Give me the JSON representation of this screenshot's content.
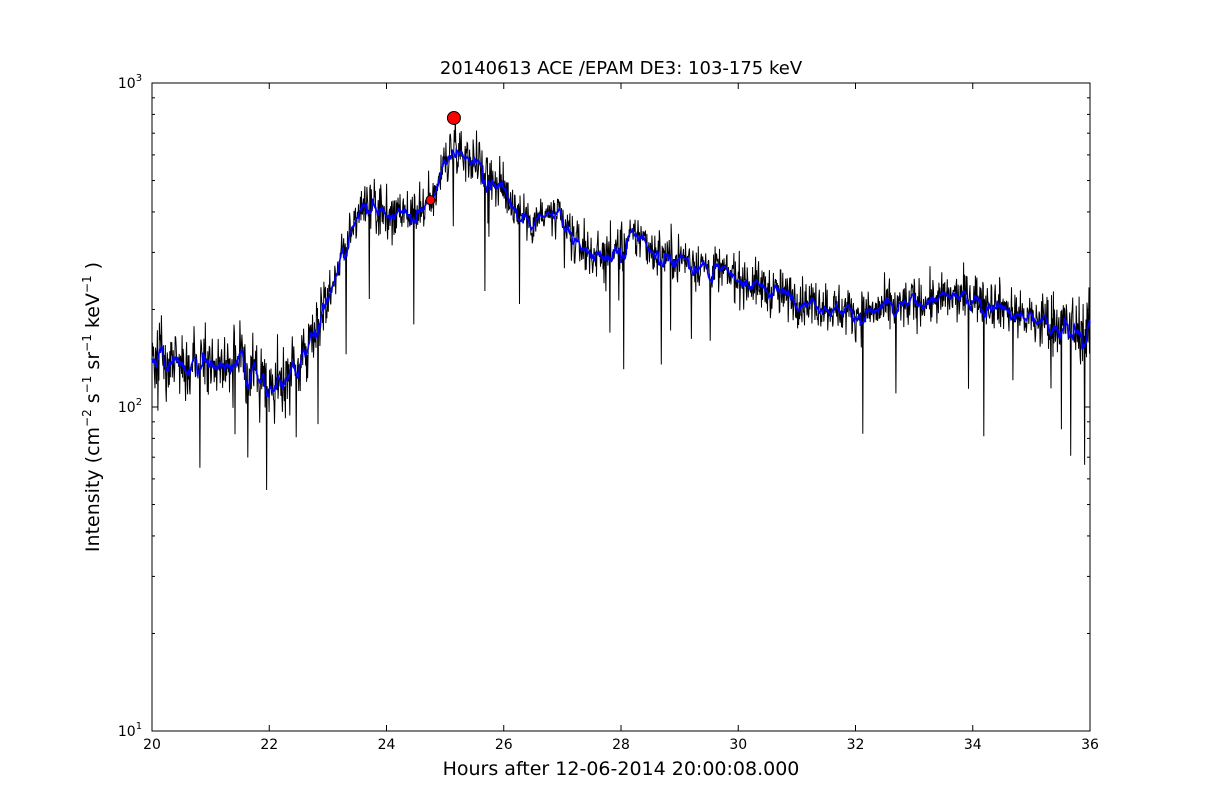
{
  "chart_data": {
    "type": "line",
    "title": "20140613 ACE /EPAM DE3: 103-175 keV",
    "xlabel": "Hours after 12-06-2014 20:00:08.000",
    "ylabel_parts": {
      "prefix": "Intensity (cm",
      "sup1": "−2",
      "mid1": " s",
      "sup2": "−1",
      "mid2": " sr",
      "sup3": "−1",
      "mid3": " keV",
      "sup4": "−1",
      "suffix": " )"
    },
    "xlim": [
      20,
      36
    ],
    "ylim": [
      10,
      1000
    ],
    "yscale": "log",
    "grid": false,
    "x_ticks": [
      "20",
      "22",
      "24",
      "26",
      "28",
      "30",
      "32",
      "34",
      "36"
    ],
    "y_ticks": [
      {
        "base": "10",
        "exp": "1"
      },
      {
        "base": "10",
        "exp": "2"
      },
      {
        "base": "10",
        "exp": "3"
      }
    ],
    "series_colors": {
      "raw": "#000000",
      "smoothed": "#0000ff",
      "markers": "#ff0000"
    },
    "profile_x": [
      20.0,
      20.5,
      21.0,
      21.5,
      21.8,
      22.0,
      22.3,
      22.6,
      22.9,
      23.2,
      23.5,
      23.75,
      24.0,
      24.3,
      24.6,
      24.8,
      25.0,
      25.15,
      25.4,
      25.7,
      26.0,
      26.4,
      26.8,
      27.0,
      27.3,
      27.7,
      28.0,
      28.3,
      28.6,
      29.0,
      29.5,
      30.0,
      30.5,
      31.0,
      31.5,
      32.0,
      32.5,
      33.0,
      33.5,
      34.0,
      34.5,
      35.0,
      35.5,
      36.0
    ],
    "profile_y": [
      155,
      140,
      140,
      135,
      125,
      110,
      120,
      150,
      200,
      280,
      390,
      430,
      390,
      380,
      400,
      450,
      560,
      650,
      600,
      540,
      460,
      380,
      390,
      370,
      310,
      290,
      310,
      340,
      300,
      290,
      270,
      250,
      230,
      215,
      205,
      195,
      200,
      210,
      215,
      220,
      205,
      185,
      180,
      170
    ],
    "markers": [
      {
        "x": 24.75,
        "y": 435,
        "size": "small"
      },
      {
        "x": 25.15,
        "y": 780,
        "size": "large"
      }
    ]
  }
}
